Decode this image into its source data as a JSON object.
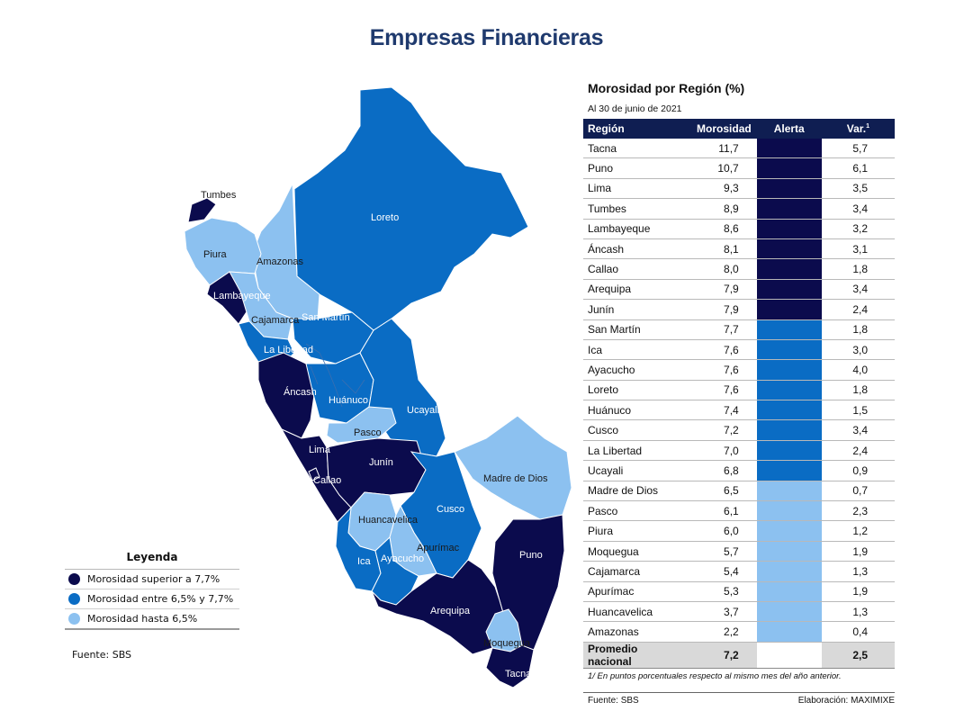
{
  "page_title": "Empresas Financieras",
  "colors": {
    "high": "#0b0b4d",
    "mid": "#0a6cc4",
    "low": "#8cc1f0",
    "header_bg": "#0f1e52",
    "title": "#1f3a6e"
  },
  "map": {
    "labels": {
      "tumbes": "Tumbes",
      "piura": "Piura",
      "amazonas": "Amazonas",
      "lambayeque": "Lambayeque",
      "cajamarca": "Cajamarca",
      "loreto": "Loreto",
      "san_martin": "San Martín",
      "la_libertad": "La Libertad",
      "ancash": "Áncash",
      "huanuco": "Huánuco",
      "ucayali": "Ucayali",
      "pasco": "Pasco",
      "lima": "Lima",
      "callao": "Callao",
      "junin": "Junín",
      "madre_de_dios": "Madre de Dios",
      "huancavelica": "Huancavelica",
      "cusco": "Cusco",
      "apurimac": "Apurímac",
      "ica": "Ica",
      "ayacucho": "Ayacucho",
      "puno": "Puno",
      "arequipa": "Arequipa",
      "moquegua": "Moquegua",
      "tacna": "Tacna"
    }
  },
  "legend": {
    "title": "Leyenda",
    "items": [
      {
        "label": "Morosidad superior a 7,7%",
        "level": "high"
      },
      {
        "label": "Morosidad entre 6,5% y 7,7%",
        "level": "mid"
      },
      {
        "label": "Morosidad hasta 6,5%",
        "level": "low"
      }
    ],
    "source": "Fuente: SBS"
  },
  "chart_data": {
    "type": "table",
    "title": "Morosidad por Región (%)",
    "subtitle": "Al 30 de junio de 2021",
    "columns": [
      "Región",
      "Morosidad",
      "Alerta",
      "Var."
    ],
    "var_superscript": "1",
    "rows": [
      {
        "region": "Tacna",
        "morosidad": "11,7",
        "alerta": "high",
        "var": "5,7"
      },
      {
        "region": "Puno",
        "morosidad": "10,7",
        "alerta": "high",
        "var": "6,1"
      },
      {
        "region": "Lima",
        "morosidad": "9,3",
        "alerta": "high",
        "var": "3,5"
      },
      {
        "region": "Tumbes",
        "morosidad": "8,9",
        "alerta": "high",
        "var": "3,4"
      },
      {
        "region": "Lambayeque",
        "morosidad": "8,6",
        "alerta": "high",
        "var": "3,2"
      },
      {
        "region": "Áncash",
        "morosidad": "8,1",
        "alerta": "high",
        "var": "3,1"
      },
      {
        "region": "Callao",
        "morosidad": "8,0",
        "alerta": "high",
        "var": "1,8"
      },
      {
        "region": "Arequipa",
        "morosidad": "7,9",
        "alerta": "high",
        "var": "3,4"
      },
      {
        "region": "Junín",
        "morosidad": "7,9",
        "alerta": "high",
        "var": "2,4"
      },
      {
        "region": "San Martín",
        "morosidad": "7,7",
        "alerta": "mid",
        "var": "1,8"
      },
      {
        "region": "Ica",
        "morosidad": "7,6",
        "alerta": "mid",
        "var": "3,0"
      },
      {
        "region": "Ayacucho",
        "morosidad": "7,6",
        "alerta": "mid",
        "var": "4,0"
      },
      {
        "region": "Loreto",
        "morosidad": "7,6",
        "alerta": "mid",
        "var": "1,8"
      },
      {
        "region": "Huánuco",
        "morosidad": "7,4",
        "alerta": "mid",
        "var": "1,5"
      },
      {
        "region": "Cusco",
        "morosidad": "7,2",
        "alerta": "mid",
        "var": "3,4"
      },
      {
        "region": "La Libertad",
        "morosidad": "7,0",
        "alerta": "mid",
        "var": "2,4"
      },
      {
        "region": "Ucayali",
        "morosidad": "6,8",
        "alerta": "mid",
        "var": "0,9"
      },
      {
        "region": "Madre de Dios",
        "morosidad": "6,5",
        "alerta": "low",
        "var": "0,7"
      },
      {
        "region": "Pasco",
        "morosidad": "6,1",
        "alerta": "low",
        "var": "2,3"
      },
      {
        "region": "Piura",
        "morosidad": "6,0",
        "alerta": "low",
        "var": "1,2"
      },
      {
        "region": "Moquegua",
        "morosidad": "5,7",
        "alerta": "low",
        "var": "1,9"
      },
      {
        "region": "Cajamarca",
        "morosidad": "5,4",
        "alerta": "low",
        "var": "1,3"
      },
      {
        "region": "Apurímac",
        "morosidad": "5,3",
        "alerta": "low",
        "var": "1,9"
      },
      {
        "region": "Huancavelica",
        "morosidad": "3,7",
        "alerta": "low",
        "var": "1,3"
      },
      {
        "region": "Amazonas",
        "morosidad": "2,2",
        "alerta": "low",
        "var": "0,4"
      }
    ],
    "average": {
      "region": "Promedio nacional",
      "morosidad": "7,2",
      "var": "2,5"
    },
    "note": "1/ En puntos porcentuales respecto al mismo mes del año anterior.",
    "source": "Fuente: SBS",
    "credit": "Elaboración: MAXIMIXE"
  }
}
